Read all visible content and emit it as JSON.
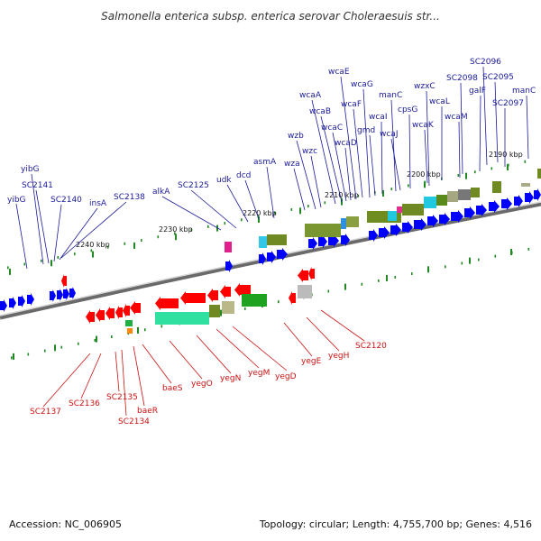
{
  "title": "Salmonella enterica subsp. enterica serovar Choleraesuis str...",
  "footer": {
    "accession": "Accession: NC_006905",
    "topology": "Topology: circular; Length: 4,755,700 bp; Genes: 4,516"
  },
  "colors": {
    "forward_gene": "#0000ff",
    "reverse_gene": "#ff0000",
    "backbone": "#808080",
    "top_label": "#1a1a99",
    "bottom_label": "#cc1111",
    "tick": "#228822"
  },
  "scale_labels": [
    "2240 kbp",
    "2230 kbp",
    "2220 kbp",
    "2210 kbp",
    "2200 kbp",
    "2190 kbp"
  ],
  "forward_genes": [
    "yibG",
    "yibG",
    "SC2141",
    "SC2140",
    "insA",
    "SC2138",
    "alkA",
    "SC2125",
    "udk",
    "dcd",
    "asmA",
    "wza",
    "wzb",
    "wzc",
    "wcaA",
    "wcaB",
    "wcaC",
    "wcaD",
    "wcaE",
    "wcaF",
    "wcaG",
    "gmd",
    "wcaI",
    "manC",
    "wcaJ",
    "cpsG",
    "wzxC",
    "wcaK",
    "wcaL",
    "wcaM",
    "SC2098",
    "galF",
    "SC2097",
    "SC2096",
    "SC2095",
    "manC"
  ],
  "reverse_genes": [
    "SC2137",
    "SC2136",
    "SC2135",
    "SC2134",
    "baeR",
    "baeS",
    "yegO",
    "yegN",
    "yegM",
    "yegD",
    "yegE",
    "yegH",
    "SC2120"
  ]
}
